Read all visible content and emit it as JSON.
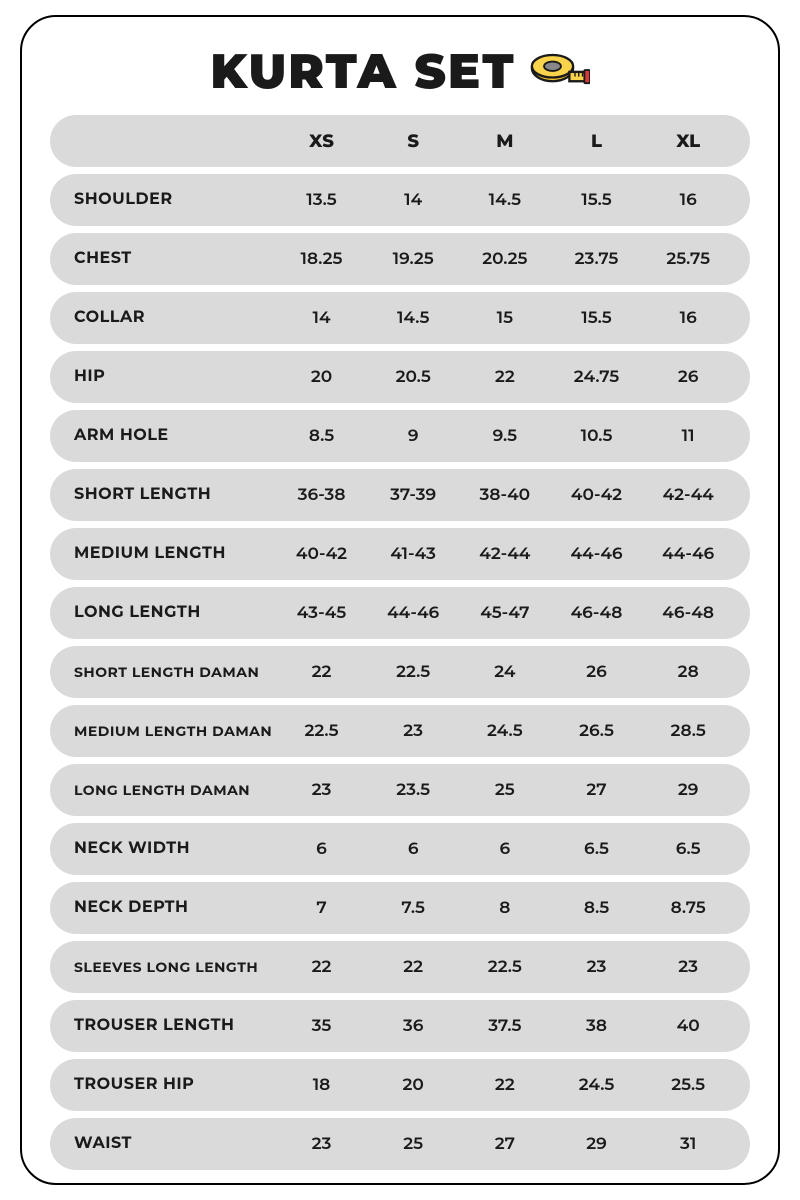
{
  "title": "KURTA SET",
  "icon": "measuring-tape-icon",
  "background_color": "#ffffff",
  "card_border_color": "#000000",
  "card_border_radius": 36,
  "row_bg_color": "#dadada",
  "row_border_radius": 28,
  "text_color": "#1a1a1a",
  "title_fontsize": 48,
  "label_fontsize": 16,
  "cell_fontsize": 17,
  "header_fontsize": 18,
  "columns": [
    "XS",
    "S",
    "M",
    "L",
    "XL"
  ],
  "rows": [
    {
      "label": "SHOULDER",
      "small": false,
      "values": [
        "13.5",
        "14",
        "14.5",
        "15.5",
        "16"
      ]
    },
    {
      "label": "CHEST",
      "small": false,
      "values": [
        "18.25",
        "19.25",
        "20.25",
        "23.75",
        "25.75"
      ]
    },
    {
      "label": "COLLAR",
      "small": false,
      "values": [
        "14",
        "14.5",
        "15",
        "15.5",
        "16"
      ]
    },
    {
      "label": "HIP",
      "small": false,
      "values": [
        "20",
        "20.5",
        "22",
        "24.75",
        "26"
      ]
    },
    {
      "label": "ARM HOLE",
      "small": false,
      "values": [
        "8.5",
        "9",
        "9.5",
        "10.5",
        "11"
      ]
    },
    {
      "label": "SHORT LENGTH",
      "small": false,
      "values": [
        "36-38",
        "37-39",
        "38-40",
        "40-42",
        "42-44"
      ]
    },
    {
      "label": "MEDIUM LENGTH",
      "small": false,
      "values": [
        "40-42",
        "41-43",
        "42-44",
        "44-46",
        "44-46"
      ]
    },
    {
      "label": "LONG LENGTH",
      "small": false,
      "values": [
        "43-45",
        "44-46",
        "45-47",
        "46-48",
        "46-48"
      ]
    },
    {
      "label": "SHORT LENGTH DAMAN",
      "small": true,
      "values": [
        "22",
        "22.5",
        "24",
        "26",
        "28"
      ]
    },
    {
      "label": "MEDIUM LENGTH DAMAN",
      "small": true,
      "values": [
        "22.5",
        "23",
        "24.5",
        "26.5",
        "28.5"
      ]
    },
    {
      "label": "LONG LENGTH DAMAN",
      "small": true,
      "values": [
        "23",
        "23.5",
        "25",
        "27",
        "29"
      ]
    },
    {
      "label": "NECK WIDTH",
      "small": false,
      "values": [
        "6",
        "6",
        "6",
        "6.5",
        "6.5"
      ]
    },
    {
      "label": "NECK DEPTH",
      "small": false,
      "values": [
        "7",
        "7.5",
        "8",
        "8.5",
        "8.75"
      ]
    },
    {
      "label": "SLEEVES LONG LENGTH",
      "small": true,
      "values": [
        "22",
        "22",
        "22.5",
        "23",
        "23"
      ]
    },
    {
      "label": "TROUSER LENGTH",
      "small": false,
      "values": [
        "35",
        "36",
        "37.5",
        "38",
        "40"
      ]
    },
    {
      "label": "TROUSER HIP",
      "small": false,
      "values": [
        "18",
        "20",
        "22",
        "24.5",
        "25.5"
      ]
    },
    {
      "label": "WAIST",
      "small": false,
      "values": [
        "23",
        "25",
        "27",
        "29",
        "31"
      ]
    }
  ]
}
